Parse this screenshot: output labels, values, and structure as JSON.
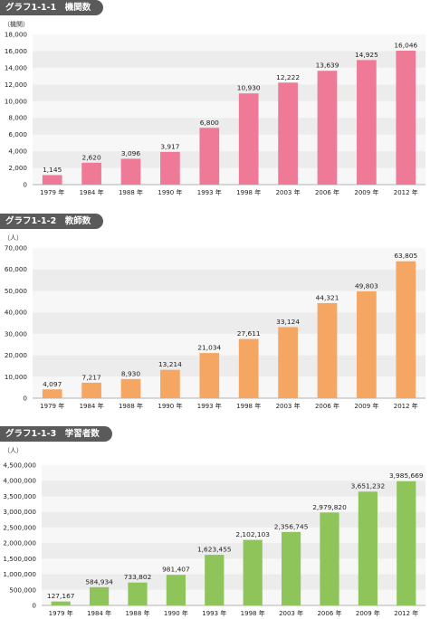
{
  "chart_data": [
    {
      "type": "bar",
      "title": "グラフ1-1-1　機関数",
      "ylabel": "（機関）",
      "categories": [
        "1979 年",
        "1984 年",
        "1988 年",
        "1990 年",
        "1993 年",
        "1998 年",
        "2003 年",
        "2006 年",
        "2009 年",
        "2012 年"
      ],
      "values": [
        1145,
        2620,
        3096,
        3917,
        6800,
        10930,
        12222,
        13639,
        14925,
        16046
      ],
      "ylim": [
        0,
        18000
      ],
      "yticks": [
        0,
        2000,
        4000,
        6000,
        8000,
        10000,
        12000,
        14000,
        16000,
        18000
      ],
      "color": "#ee7a97",
      "grid": "alternating bands"
    },
    {
      "type": "bar",
      "title": "グラフ1-1-2　教師数",
      "ylabel": "（人）",
      "categories": [
        "1979 年",
        "1984 年",
        "1988 年",
        "1990 年",
        "1993 年",
        "1998 年",
        "2003 年",
        "2006 年",
        "2009 年",
        "2012 年"
      ],
      "values": [
        4097,
        7217,
        8930,
        13214,
        21034,
        27611,
        33124,
        44321,
        49803,
        63805
      ],
      "ylim": [
        0,
        70000
      ],
      "yticks": [
        0,
        10000,
        20000,
        30000,
        40000,
        50000,
        60000,
        70000
      ],
      "color": "#f5a662",
      "grid": "alternating bands"
    },
    {
      "type": "bar",
      "title": "グラフ1-1-3　学習者数",
      "ylabel": "（人）",
      "categories": [
        "1979 年",
        "1984 年",
        "1988 年",
        "1990 年",
        "1993 年",
        "1998 年",
        "2003 年",
        "2006 年",
        "2009 年",
        "2012 年"
      ],
      "values": [
        127167,
        584934,
        733802,
        981407,
        1623455,
        2102103,
        2356745,
        2979820,
        3651232,
        3985669
      ],
      "ylim": [
        0,
        4500000
      ],
      "yticks": [
        0,
        500000,
        1000000,
        1500000,
        2000000,
        2500000,
        3000000,
        3500000,
        4000000,
        4500000
      ],
      "color": "#8ec45a",
      "grid": "alternating bands"
    }
  ]
}
